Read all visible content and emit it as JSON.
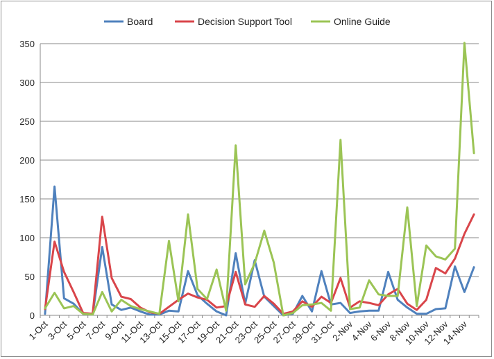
{
  "chart_data": {
    "type": "line",
    "ylim": [
      0,
      350
    ],
    "yticks": [
      0,
      50,
      100,
      150,
      200,
      250,
      300,
      350
    ],
    "legend_position": "top",
    "grid": "horizontal",
    "x": [
      "1-Oct",
      "2-Oct",
      "3-Oct",
      "4-Oct",
      "5-Oct",
      "6-Oct",
      "7-Oct",
      "8-Oct",
      "9-Oct",
      "10-Oct",
      "11-Oct",
      "12-Oct",
      "13-Oct",
      "14-Oct",
      "15-Oct",
      "16-Oct",
      "17-Oct",
      "18-Oct",
      "19-Oct",
      "20-Oct",
      "21-Oct",
      "22-Oct",
      "23-Oct",
      "24-Oct",
      "25-Oct",
      "26-Oct",
      "27-Oct",
      "28-Oct",
      "29-Oct",
      "30-Oct",
      "31-Oct",
      "1-Nov",
      "2-Nov",
      "3-Nov",
      "4-Nov",
      "5-Nov",
      "6-Nov",
      "7-Nov",
      "8-Nov",
      "9-Nov",
      "10-Nov",
      "11-Nov",
      "12-Nov",
      "13-Nov",
      "14-Nov",
      "15-Nov"
    ],
    "x_tick_labels": [
      "1-Oct",
      "3-Oct",
      "5-Oct",
      "7-Oct",
      "9-Oct",
      "11-Oct",
      "13-Oct",
      "15-Oct",
      "17-Oct",
      "19-Oct",
      "21-Oct",
      "23-Oct",
      "25-Oct",
      "27-Oct",
      "29-Oct",
      "31-Oct",
      "2-Nov",
      "4-Nov",
      "6-Nov",
      "8-Nov",
      "10-Nov",
      "12-Nov",
      "14-Nov"
    ],
    "series": [
      {
        "name": "Board",
        "color": "#4f81bd",
        "values": [
          2,
          166,
          22,
          15,
          2,
          1,
          88,
          14,
          7,
          10,
          5,
          1,
          1,
          6,
          5,
          57,
          26,
          15,
          5,
          0,
          80,
          15,
          71,
          24,
          12,
          0,
          2,
          25,
          5,
          57,
          14,
          16,
          3,
          5,
          6,
          6,
          56,
          20,
          10,
          2,
          2,
          8,
          9,
          63,
          30,
          62
        ]
      },
      {
        "name": "Decision Support Tool",
        "color": "#d9454a",
        "values": [
          8,
          95,
          56,
          30,
          3,
          2,
          127,
          48,
          24,
          21,
          10,
          4,
          2,
          11,
          20,
          28,
          23,
          20,
          10,
          12,
          56,
          14,
          11,
          25,
          15,
          2,
          5,
          18,
          11,
          24,
          16,
          48,
          10,
          18,
          16,
          13,
          27,
          34,
          15,
          7,
          20,
          61,
          54,
          73,
          105,
          130
        ]
      },
      {
        "name": "Online Guide",
        "color": "#9bc455",
        "values": [
          9,
          29,
          9,
          12,
          2,
          1,
          30,
          5,
          20,
          12,
          8,
          5,
          2,
          96,
          18,
          130,
          34,
          21,
          59,
          6,
          219,
          40,
          67,
          109,
          68,
          0,
          3,
          13,
          14,
          16,
          6,
          226,
          8,
          10,
          45,
          27,
          25,
          25,
          139,
          12,
          90,
          76,
          72,
          86,
          351,
          209
        ]
      }
    ]
  }
}
